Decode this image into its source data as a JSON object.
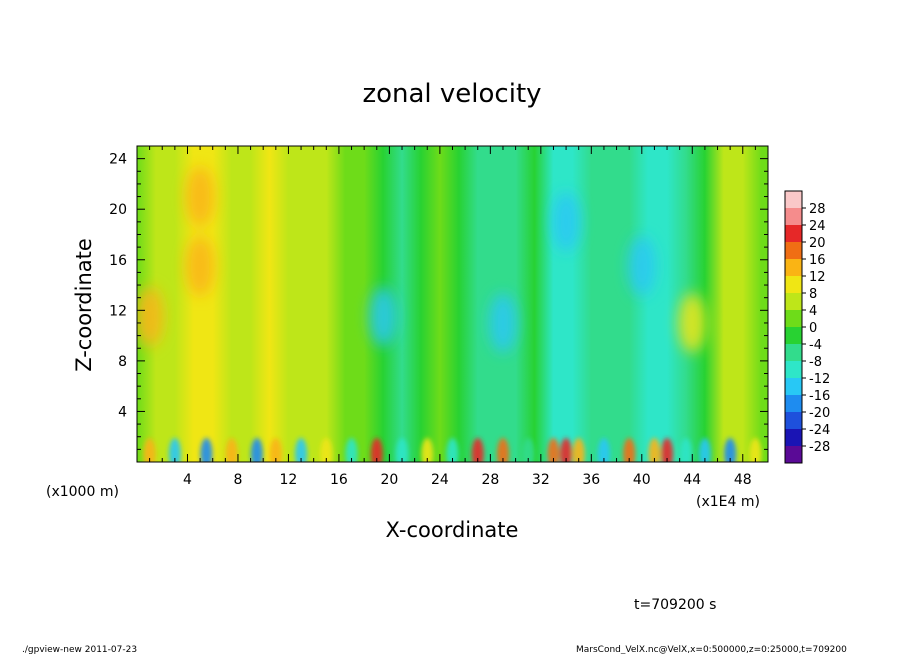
{
  "chart_data": {
    "type": "heatmap",
    "title": "zonal velocity",
    "xlabel": "X-coordinate",
    "ylabel": "Z-coordinate",
    "x_unit": "(x1E4 m)",
    "y_unit": "(x1000 m)",
    "xlim": [
      0,
      50
    ],
    "ylim": [
      0,
      25
    ],
    "x_ticks": [
      4,
      8,
      12,
      16,
      20,
      24,
      28,
      32,
      36,
      40,
      44,
      48
    ],
    "y_ticks": [
      4,
      8,
      12,
      16,
      20,
      24
    ],
    "x_tick_labels": [
      "4",
      "8",
      "12",
      "16",
      "20",
      "24",
      "28",
      "32",
      "36",
      "40",
      "44",
      "48"
    ],
    "y_tick_labels": [
      "4",
      "8",
      "12",
      "16",
      "20",
      "24"
    ],
    "colorbar": {
      "levels": [
        -28,
        -24,
        -20,
        -16,
        -12,
        -8,
        -4,
        0,
        4,
        8,
        12,
        16,
        20,
        24,
        28
      ],
      "labels": [
        "-28",
        "-24",
        "-20",
        "-16",
        "-12",
        "-8",
        "-4",
        "0",
        "4",
        "8",
        "12",
        "16",
        "20",
        "24",
        "28"
      ],
      "colors": [
        "#5a0a96",
        "#1a14b4",
        "#1e50dc",
        "#1e8cf0",
        "#28c8f5",
        "#2ee6c8",
        "#32dc8c",
        "#28d232",
        "#6edc19",
        "#bee619",
        "#f0e614",
        "#fab414",
        "#f06e14",
        "#e62828",
        "#f58c8c",
        "#fac8c8"
      ]
    },
    "columns_x": [
      0,
      1.5,
      3,
      4.5,
      6,
      7.5,
      9,
      10.5,
      12,
      13.5,
      15,
      16.5,
      18,
      19.5,
      21,
      22.5,
      24,
      25.5,
      27,
      28.5,
      30,
      31.5,
      33,
      34.5,
      36,
      37.5,
      39,
      40.5,
      42,
      43.5,
      45,
      46.5,
      48,
      49.5
    ],
    "column_mean_velocity": [
      2,
      4,
      7,
      11,
      11,
      6,
      6,
      8,
      7,
      6,
      5,
      3,
      0,
      -4,
      -5,
      -2,
      0,
      -2,
      -5,
      -8,
      -7,
      -4,
      -9,
      -11,
      -8,
      -7,
      -6,
      -9,
      -10,
      -5,
      -1,
      5,
      6,
      2
    ],
    "local_features": [
      {
        "x": 1,
        "z": 11.5,
        "value": 13
      },
      {
        "x": 5,
        "z": 21,
        "value": 13
      },
      {
        "x": 5,
        "z": 15.5,
        "value": 13
      },
      {
        "x": 19.5,
        "z": 11.5,
        "value": -13
      },
      {
        "x": 29,
        "z": 11,
        "value": -13
      },
      {
        "x": 34,
        "z": 19,
        "value": -14
      },
      {
        "x": 40,
        "z": 15.5,
        "value": -13
      },
      {
        "x": 44,
        "z": 11,
        "value": 11
      }
    ],
    "surface_cells": [
      {
        "x": 1,
        "value": 13
      },
      {
        "x": 3,
        "value": -14
      },
      {
        "x": 5.5,
        "value": -18
      },
      {
        "x": 7.5,
        "value": 14
      },
      {
        "x": 9.5,
        "value": -18
      },
      {
        "x": 11,
        "value": 12
      },
      {
        "x": 13,
        "value": -16
      },
      {
        "x": 15,
        "value": 10
      },
      {
        "x": 17,
        "value": -12
      },
      {
        "x": 19,
        "value": 22
      },
      {
        "x": 21,
        "value": -12
      },
      {
        "x": 23,
        "value": 10
      },
      {
        "x": 25,
        "value": -10
      },
      {
        "x": 27,
        "value": 21
      },
      {
        "x": 29,
        "value": 19
      },
      {
        "x": 31,
        "value": -8
      },
      {
        "x": 33,
        "value": 16
      },
      {
        "x": 34,
        "value": 21
      },
      {
        "x": 35,
        "value": 14
      },
      {
        "x": 37,
        "value": -14
      },
      {
        "x": 39,
        "value": 18
      },
      {
        "x": 41,
        "value": 13
      },
      {
        "x": 42,
        "value": 22
      },
      {
        "x": 43.5,
        "value": -10
      },
      {
        "x": 45,
        "value": -14
      },
      {
        "x": 47,
        "value": -20
      },
      {
        "x": 49,
        "value": 8
      }
    ]
  },
  "annotations": {
    "time": "t=709200 s",
    "footer_left": "./gpview-new  2011-07-23",
    "footer_right": "MarsCond_VelX.nc@VelX,x=0:500000,z=0:25000,t=709200"
  }
}
